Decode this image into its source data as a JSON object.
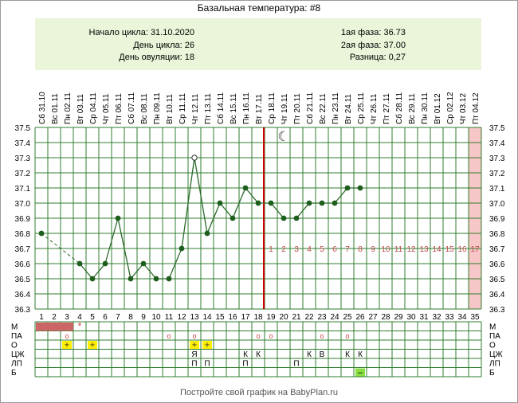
{
  "title": "Базальная температура: #8",
  "info": {
    "cycle_start_label": "Начало цикла:",
    "cycle_start": "31.10.2020",
    "cycle_day_label": "День цикла:",
    "cycle_day": "26",
    "ovulation_day_label": "День овуляции:",
    "ovulation_day": "18",
    "phase1_label": "1ая фаза:",
    "phase1": "36.73",
    "phase2_label": "2ая фаза:",
    "phase2": "37.00",
    "diff_label": "Разница:",
    "diff": "0,27"
  },
  "footer": "Постройте свой график на BabyPlan.ru",
  "colors": {
    "line": "#2a6a2a",
    "point": "#1d5e1d",
    "grid": "#2f7d2f",
    "ovulation": "#cc0000",
    "luteal_numbers": "#c05050",
    "last_day_bg": "#f7c6c6",
    "menses_bar": "#cc6666",
    "info_bg": "#eaf5da",
    "yellow": "#ffef00",
    "lime": "#88e040"
  },
  "chart_data": {
    "type": "line",
    "title": "Базальная температура: #8",
    "x": [
      1,
      2,
      3,
      4,
      5,
      6,
      7,
      8,
      9,
      10,
      11,
      12,
      13,
      14,
      15,
      16,
      17,
      18,
      19,
      20,
      21,
      22,
      23,
      24,
      25,
      26,
      27,
      28,
      29,
      30,
      31,
      32,
      33,
      34,
      35
    ],
    "dates": [
      "Сб 31.10",
      "Вс 01.11",
      "Пн 02.11",
      "Вт 03.11",
      "Ср 04.11",
      "Чт 05.11",
      "Пт 06.11",
      "Сб 07.11",
      "Вс 08.11",
      "Пн 09.11",
      "Вт 10.11",
      "Ср 11.11",
      "Чт 12.11",
      "Пт 13.11",
      "Сб 14.11",
      "Вс 15.11",
      "Пн 16.11",
      "Вт 17.11",
      "Ср 18.11",
      "Чт 19.11",
      "Пт 20.11",
      "Сб 21.11",
      "Вс 22.11",
      "Пн 23.11",
      "Вт 24.11",
      "Ср 25.11",
      "Чт 26.11",
      "Пт 27.11",
      "Сб 28.11",
      "Вс 29.11",
      "Пн 30.11",
      "Вт 01.12",
      "Ср 02.12",
      "Чт 03.12",
      "Пт 04.12"
    ],
    "series": [
      {
        "values": [
          36.8,
          null,
          null,
          36.6,
          36.5,
          36.6,
          36.9,
          36.5,
          36.6,
          36.5,
          36.5,
          36.7,
          37.3,
          36.8,
          37.0,
          36.9,
          37.1,
          37.0,
          37.0,
          36.9,
          36.9,
          37.0,
          37.0,
          37.0,
          37.1,
          37.1,
          null,
          null,
          null,
          null,
          null,
          null,
          null,
          null,
          null
        ],
        "dashed_gap": [
          1,
          4
        ],
        "hollow_point_day": 13
      }
    ],
    "y_ticks": [
      "36.3",
      "36.4",
      "36.5",
      "36.6",
      "36.7",
      "36.8",
      "36.9",
      "37.0",
      "37.1",
      "37.2",
      "37.3",
      "37.4",
      "37.5"
    ],
    "ylim": [
      36.3,
      37.5
    ],
    "ovulation_day": 18,
    "moon_day": 20,
    "moon_symbol": "☾",
    "luteal_numbers": [
      "1",
      "2",
      "3",
      "4",
      "5",
      "6",
      "7",
      "8",
      "9",
      "10",
      "11",
      "12",
      "13",
      "14",
      "15",
      "16",
      "17"
    ],
    "luteal_start_day": 19,
    "highlight_last_day": 35,
    "grid": true
  },
  "table": {
    "row_labels": [
      "М",
      "ПА",
      "О",
      "ЦЖ",
      "ЛП",
      "Б"
    ],
    "menses_days": [
      1,
      2,
      3
    ],
    "menses_star_day": 4,
    "star_symbol": "*",
    "pa_days": [
      3,
      11,
      13,
      18,
      19,
      23,
      25
    ],
    "pa_symbol": "о",
    "o_plus_days": [
      3,
      5,
      13,
      14
    ],
    "plus_symbol": "+",
    "cz": [
      {
        "day": 13,
        "t": "Я"
      },
      {
        "day": 17,
        "t": "К"
      },
      {
        "day": 18,
        "t": "К"
      },
      {
        "day": 22,
        "t": "К"
      },
      {
        "day": 23,
        "t": "В"
      },
      {
        "day": 25,
        "t": "К"
      },
      {
        "day": 26,
        "t": "К"
      }
    ],
    "lp": [
      {
        "day": 13,
        "t": "П"
      },
      {
        "day": 14,
        "t": "П"
      },
      {
        "day": 17,
        "t": "П"
      },
      {
        "day": 21,
        "t": "П"
      }
    ],
    "b_minus_day": 26,
    "minus_symbol": "–"
  }
}
